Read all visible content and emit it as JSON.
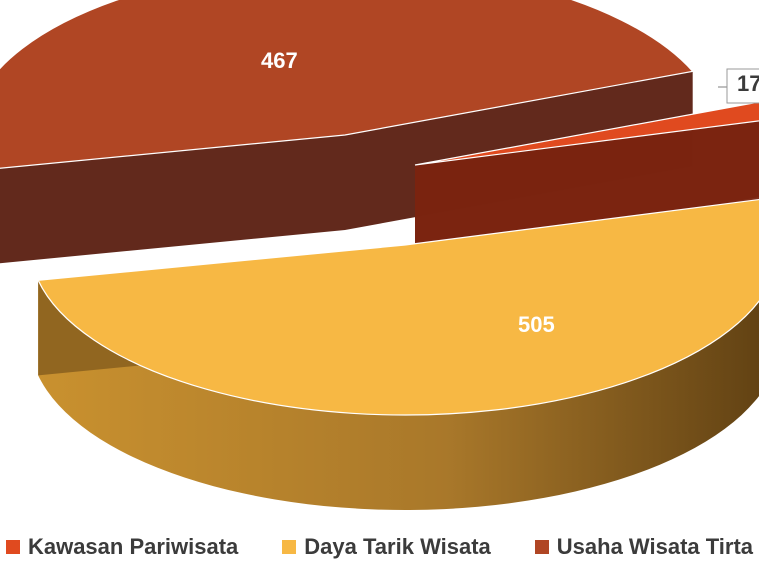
{
  "chart_data": {
    "type": "pie",
    "style": "3d-exploded",
    "slices": [
      {
        "label": "Kawasan Pariwisata",
        "value": 17,
        "color": "#E04A1F"
      },
      {
        "label": "Daya Tarik Wisata",
        "value": 505,
        "color": "#F7B844"
      },
      {
        "label": "Usaha Wisata Tirta",
        "value": 467,
        "color": "#B04624"
      }
    ],
    "data_labels": [
      "17",
      "505",
      "467"
    ],
    "legend": {
      "position": "bottom"
    }
  }
}
